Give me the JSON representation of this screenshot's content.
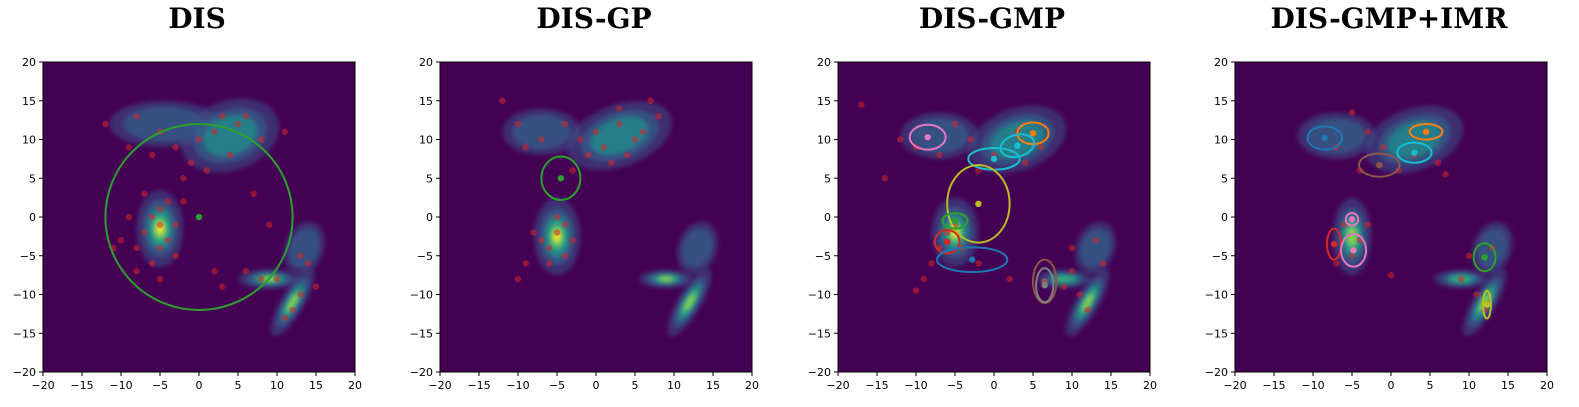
{
  "chart_data": [
    {
      "type": "scatter",
      "title": "DIS",
      "xlim": [
        -20,
        20
      ],
      "ylim": [
        -20,
        20
      ],
      "ticks": [
        -20,
        -15,
        -10,
        -5,
        0,
        5,
        10,
        15,
        20
      ],
      "background": "#440154",
      "density_blobs": [
        {
          "x": -5,
          "y": -1.5,
          "rx": 3,
          "ry": 5,
          "rot": 0,
          "peak": 1.0
        },
        {
          "x": -4.5,
          "y": 12,
          "rx": 7,
          "ry": 3,
          "rot": 0,
          "peak": 0.3
        },
        {
          "x": 4,
          "y": 10.5,
          "rx": 6.5,
          "ry": 4.5,
          "rot": -20,
          "peak": 0.45
        },
        {
          "x": 9,
          "y": -8,
          "rx": 4,
          "ry": 1.3,
          "rot": 0,
          "peak": 0.8
        },
        {
          "x": 12,
          "y": -11,
          "rx": 1.5,
          "ry": 5,
          "rot": 30,
          "peak": 0.85
        },
        {
          "x": 13.5,
          "y": -4,
          "rx": 2.5,
          "ry": 3.5,
          "rot": 20,
          "peak": 0.3
        }
      ],
      "samples": [
        [
          -5,
          -1
        ],
        [
          -6,
          0
        ],
        [
          -4,
          -3
        ],
        [
          -7,
          -2
        ],
        [
          -5,
          1
        ],
        [
          -3,
          -1
        ],
        [
          -8,
          -4
        ],
        [
          -6,
          -6
        ],
        [
          -2,
          2
        ],
        [
          -10,
          -3
        ],
        [
          -4,
          2
        ],
        [
          -9,
          0
        ],
        [
          -5,
          -4
        ],
        [
          -7,
          3
        ],
        [
          -3,
          -5
        ],
        [
          -5,
          -8
        ],
        [
          -12,
          12
        ],
        [
          -8,
          13
        ],
        [
          -5,
          11
        ],
        [
          -3,
          9
        ],
        [
          2,
          11
        ],
        [
          5,
          12
        ],
        [
          8,
          10
        ],
        [
          4,
          8
        ],
        [
          0,
          10
        ],
        [
          -1,
          7
        ],
        [
          6,
          13
        ],
        [
          3,
          13
        ],
        [
          -6,
          8
        ],
        [
          -9,
          9
        ],
        [
          11,
          11
        ],
        [
          8,
          -8
        ],
        [
          10,
          -8
        ],
        [
          6,
          -7
        ],
        [
          12,
          -12
        ],
        [
          11,
          -13
        ],
        [
          13,
          -10
        ],
        [
          14,
          -6
        ],
        [
          15,
          -9
        ],
        [
          2,
          -7
        ],
        [
          3,
          -9
        ],
        [
          9,
          -1
        ],
        [
          7,
          3
        ],
        [
          -2,
          5
        ],
        [
          1,
          6
        ],
        [
          13,
          -5
        ],
        [
          -11,
          -4
        ],
        [
          -8,
          -7
        ]
      ],
      "components": [
        {
          "cx": 0,
          "cy": 0,
          "rx": 12,
          "ry": 12,
          "rot": 0,
          "color": "#2ca02c"
        }
      ]
    },
    {
      "type": "scatter",
      "title": "DIS-GP",
      "xlim": [
        -20,
        20
      ],
      "ylim": [
        -20,
        20
      ],
      "ticks": [
        -20,
        -15,
        -10,
        -5,
        0,
        5,
        10,
        15,
        20
      ],
      "background": "#440154",
      "density_blobs": [
        {
          "x": -5,
          "y": -2.5,
          "rx": 3,
          "ry": 5,
          "rot": 0,
          "peak": 1.0
        },
        {
          "x": -7,
          "y": 11,
          "rx": 5,
          "ry": 3,
          "rot": 0,
          "peak": 0.3
        },
        {
          "x": 3,
          "y": 10.5,
          "rx": 7,
          "ry": 4,
          "rot": -20,
          "peak": 0.5
        },
        {
          "x": 9,
          "y": -8,
          "rx": 3.5,
          "ry": 1.2,
          "rot": 0,
          "peak": 0.9
        },
        {
          "x": 12,
          "y": -11,
          "rx": 1.5,
          "ry": 5,
          "rot": 30,
          "peak": 0.9
        },
        {
          "x": 13,
          "y": -4,
          "rx": 2.5,
          "ry": 3.5,
          "rot": 20,
          "peak": 0.3
        }
      ],
      "samples": [
        [
          -5,
          -2
        ],
        [
          -6,
          -4
        ],
        [
          -4,
          -1
        ],
        [
          -7,
          -3
        ],
        [
          -5,
          0
        ],
        [
          -3,
          -3
        ],
        [
          -6,
          -6
        ],
        [
          -8,
          -2
        ],
        [
          -4,
          -5
        ],
        [
          -9,
          -6
        ],
        [
          -10,
          -8
        ],
        [
          -12,
          15
        ],
        [
          -10,
          12
        ],
        [
          -7,
          10
        ],
        [
          -4,
          12
        ],
        [
          0,
          11
        ],
        [
          3,
          12
        ],
        [
          5,
          10
        ],
        [
          8,
          13
        ],
        [
          4,
          8
        ],
        [
          1,
          9
        ],
        [
          -2,
          10
        ],
        [
          7,
          15
        ],
        [
          3,
          14
        ],
        [
          -1,
          8
        ],
        [
          6,
          11
        ],
        [
          -3,
          6
        ],
        [
          -9,
          9
        ],
        [
          2,
          7
        ]
      ],
      "components": [
        {
          "cx": -4.5,
          "cy": 5,
          "rx": 2.5,
          "ry": 2.8,
          "rot": 0,
          "color": "#2ca02c"
        }
      ]
    },
    {
      "type": "scatter",
      "title": "DIS-GMP",
      "xlim": [
        -20,
        20
      ],
      "ylim": [
        -20,
        20
      ],
      "ticks": [
        -20,
        -15,
        -10,
        -5,
        0,
        5,
        10,
        15,
        20
      ],
      "background": "#440154",
      "density_blobs": [
        {
          "x": -5,
          "y": -2,
          "rx": 3,
          "ry": 4.5,
          "rot": 0,
          "peak": 1.0
        },
        {
          "x": -7,
          "y": 10.5,
          "rx": 5,
          "ry": 3,
          "rot": 0,
          "peak": 0.3
        },
        {
          "x": 3,
          "y": 10,
          "rx": 6.5,
          "ry": 4,
          "rot": -20,
          "peak": 0.45
        },
        {
          "x": 9,
          "y": -8,
          "rx": 3.5,
          "ry": 1.2,
          "rot": 0,
          "peak": 0.7
        },
        {
          "x": 12,
          "y": -11,
          "rx": 1.5,
          "ry": 5,
          "rot": 30,
          "peak": 0.8
        },
        {
          "x": 13,
          "y": -4,
          "rx": 2.5,
          "ry": 3.5,
          "rot": 20,
          "peak": 0.3
        }
      ],
      "samples": [
        [
          -17,
          14.5
        ],
        [
          -14,
          5
        ],
        [
          -12,
          10
        ],
        [
          -10,
          9
        ],
        [
          -7,
          8
        ],
        [
          -5,
          12
        ],
        [
          -3,
          10
        ],
        [
          0,
          8
        ],
        [
          3,
          11
        ],
        [
          6,
          9
        ],
        [
          4,
          7
        ],
        [
          -2,
          6
        ],
        [
          -6,
          -2
        ],
        [
          -7,
          -4
        ],
        [
          -5,
          -1
        ],
        [
          -4,
          -4
        ],
        [
          -8,
          -6
        ],
        [
          -10,
          -9.5
        ],
        [
          -9,
          -8
        ],
        [
          -2,
          -6
        ],
        [
          10,
          -7
        ],
        [
          11,
          -10
        ],
        [
          12,
          -12
        ],
        [
          14,
          -6
        ],
        [
          9,
          -9
        ],
        [
          13,
          -3
        ],
        [
          10,
          -4
        ],
        [
          2,
          -8
        ]
      ],
      "components": [
        {
          "cx": -8.5,
          "cy": 10.3,
          "rx": 2.3,
          "ry": 1.6,
          "rot": 0,
          "color": "#e377c2"
        },
        {
          "cx": 5,
          "cy": 10.8,
          "rx": 2,
          "ry": 1.4,
          "rot": 0,
          "color": "#ff7f0e"
        },
        {
          "cx": 3,
          "cy": 9.2,
          "rx": 2.2,
          "ry": 1.4,
          "rot": 15,
          "color": "#17becf"
        },
        {
          "cx": 0,
          "cy": 7.5,
          "rx": 3.3,
          "ry": 1.4,
          "rot": 0,
          "color": "#17becf"
        },
        {
          "cx": -2,
          "cy": 1.7,
          "rx": 4,
          "ry": 5,
          "rot": 0,
          "color": "#bcbd22"
        },
        {
          "cx": -5,
          "cy": -0.5,
          "rx": 1.6,
          "ry": 1,
          "rot": 0,
          "color": "#2ca02c"
        },
        {
          "cx": -6,
          "cy": -3.2,
          "rx": 1.6,
          "ry": 1.5,
          "rot": 0,
          "color": "#d62728"
        },
        {
          "cx": -2.8,
          "cy": -5.5,
          "rx": 4.5,
          "ry": 1.6,
          "rot": 0,
          "color": "#1f77b4"
        },
        {
          "cx": 6.5,
          "cy": -8.3,
          "rx": 1.5,
          "ry": 2.8,
          "rot": 0,
          "color": "#8c564b"
        },
        {
          "cx": 6.5,
          "cy": -8.8,
          "rx": 1.1,
          "ry": 2.2,
          "rot": 0,
          "color": "#7f7f7f"
        }
      ]
    },
    {
      "type": "scatter",
      "title": "DIS-GMP+IMR",
      "xlim": [
        -20,
        20
      ],
      "ylim": [
        -20,
        20
      ],
      "ticks": [
        -20,
        -15,
        -10,
        -5,
        0,
        5,
        10,
        15,
        20
      ],
      "background": "#440154",
      "density_blobs": [
        {
          "x": -5,
          "y": -2.5,
          "rx": 2.5,
          "ry": 5,
          "rot": 0,
          "peak": 0.8
        },
        {
          "x": -7,
          "y": 10.5,
          "rx": 5,
          "ry": 3,
          "rot": 0,
          "peak": 0.3
        },
        {
          "x": 3,
          "y": 10,
          "rx": 6.5,
          "ry": 4,
          "rot": -20,
          "peak": 0.45
        },
        {
          "x": 9,
          "y": -8,
          "rx": 3.5,
          "ry": 1.2,
          "rot": 0,
          "peak": 0.65
        },
        {
          "x": 12,
          "y": -11,
          "rx": 1.5,
          "ry": 5,
          "rot": 30,
          "peak": 0.85
        },
        {
          "x": 13,
          "y": -4,
          "rx": 2.5,
          "ry": 3.5,
          "rot": 20,
          "peak": 0.3
        }
      ],
      "samples": [
        [
          -5,
          13.5
        ],
        [
          -7,
          9
        ],
        [
          -3,
          11
        ],
        [
          -1,
          9
        ],
        [
          3,
          8
        ],
        [
          6,
          7
        ],
        [
          7,
          5.5
        ],
        [
          -4,
          6
        ],
        [
          1,
          6
        ],
        [
          -6,
          -1
        ],
        [
          -4,
          -3
        ],
        [
          -7,
          -6
        ],
        [
          -5,
          -5
        ],
        [
          -3,
          -1
        ],
        [
          0,
          -7.5
        ],
        [
          9,
          -8
        ],
        [
          11,
          -10
        ],
        [
          12,
          -12
        ],
        [
          13,
          -4
        ],
        [
          10,
          -5
        ]
      ],
      "components": [
        {
          "cx": -8.5,
          "cy": 10.2,
          "rx": 2.2,
          "ry": 1.5,
          "rot": 0,
          "color": "#1f77b4"
        },
        {
          "cx": 4.5,
          "cy": 11,
          "rx": 2.1,
          "ry": 1,
          "rot": 0,
          "color": "#ff7f0e"
        },
        {
          "cx": 3,
          "cy": 8.3,
          "rx": 2.2,
          "ry": 1.3,
          "rot": 0,
          "color": "#17becf"
        },
        {
          "cx": -1.5,
          "cy": 6.7,
          "rx": 2.6,
          "ry": 1.5,
          "rot": 0,
          "color": "#8c564b"
        },
        {
          "cx": -5,
          "cy": -0.3,
          "rx": 0.8,
          "ry": 0.8,
          "rot": 0,
          "color": "#e377c2"
        },
        {
          "cx": -7.3,
          "cy": -3.5,
          "rx": 0.9,
          "ry": 2,
          "rot": 0,
          "color": "#d62728"
        },
        {
          "cx": -4.8,
          "cy": -4.3,
          "rx": 1.6,
          "ry": 2.1,
          "rot": 0,
          "color": "#e377c2"
        },
        {
          "cx": 12,
          "cy": -5.2,
          "rx": 1.4,
          "ry": 1.8,
          "rot": 0,
          "color": "#2ca02c"
        },
        {
          "cx": 12.3,
          "cy": -11.3,
          "rx": 0.5,
          "ry": 1.8,
          "rot": 0,
          "color": "#bcbd22"
        }
      ]
    }
  ]
}
